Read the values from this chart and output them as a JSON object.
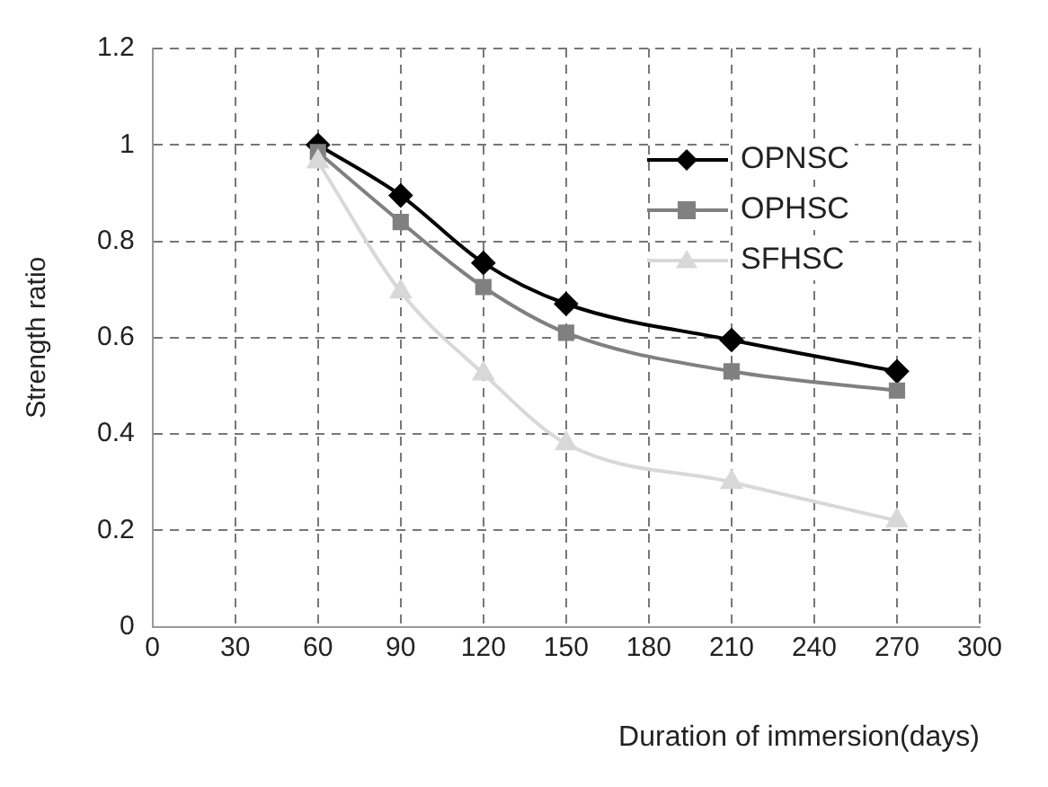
{
  "chart_data": {
    "type": "line",
    "xlabel": "Duration of immersion(days)",
    "ylabel": "Strength ratio",
    "x": [
      60,
      90,
      120,
      150,
      210,
      270
    ],
    "series": [
      {
        "name": "OPNSC",
        "color": "#000000",
        "marker": "diamond",
        "values": [
          1.0,
          0.895,
          0.755,
          0.67,
          0.595,
          0.53
        ]
      },
      {
        "name": "OPHSC",
        "color": "#808080",
        "marker": "square",
        "values": [
          0.985,
          0.84,
          0.705,
          0.61,
          0.53,
          0.49
        ]
      },
      {
        "name": "SFHSC",
        "color": "#d8d8d8",
        "marker": "triangle",
        "values": [
          0.965,
          0.695,
          0.525,
          0.38,
          0.3,
          0.22
        ]
      }
    ],
    "xlim": [
      0,
      300
    ],
    "xticks": [
      0,
      30,
      60,
      90,
      120,
      150,
      180,
      210,
      240,
      270,
      300
    ],
    "ylim": [
      0,
      1.2
    ],
    "yticks": [
      0,
      0.2,
      0.4,
      0.6,
      0.8,
      1,
      1.2
    ],
    "grid": true,
    "legend": "top right",
    "line_style": "solid"
  }
}
